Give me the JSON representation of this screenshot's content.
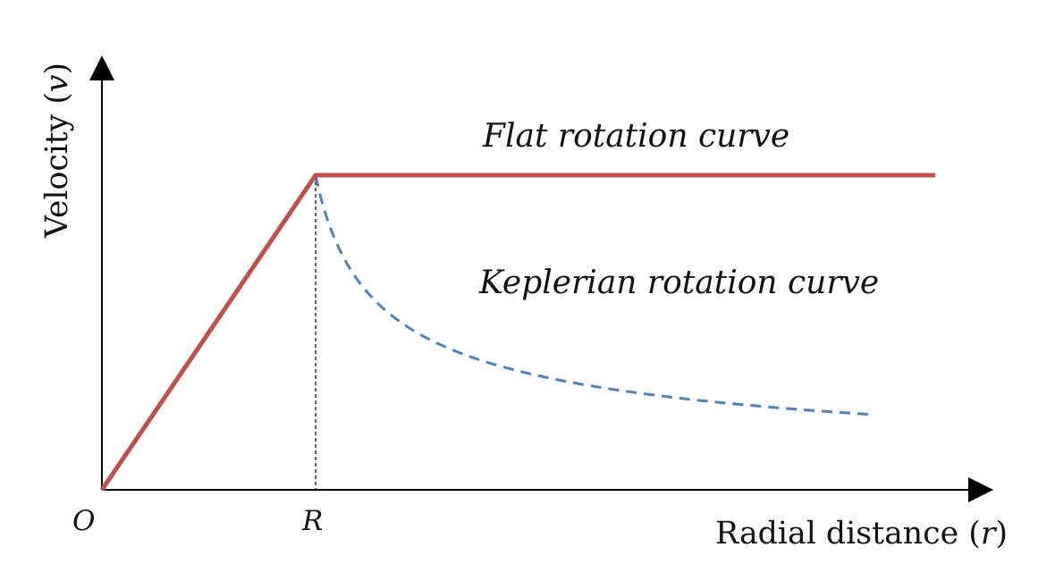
{
  "axes": {
    "y_label": "Velocity",
    "y_symbol": "v",
    "x_label": "Radial distance",
    "x_symbol": "r",
    "open_paren": "(",
    "close_paren": ")",
    "origin_label": "O",
    "radius_label": "R"
  },
  "curves": {
    "flat": {
      "label": "Flat rotation curve",
      "color": "#c0504d",
      "style": "solid"
    },
    "keplerian": {
      "label": "Keplerian rotation curve",
      "color": "#4f81bd",
      "style": "dashed"
    }
  },
  "colors": {
    "axis": "#000000",
    "marker": "#000000",
    "text": "#111111",
    "background": "#ffffff"
  }
}
